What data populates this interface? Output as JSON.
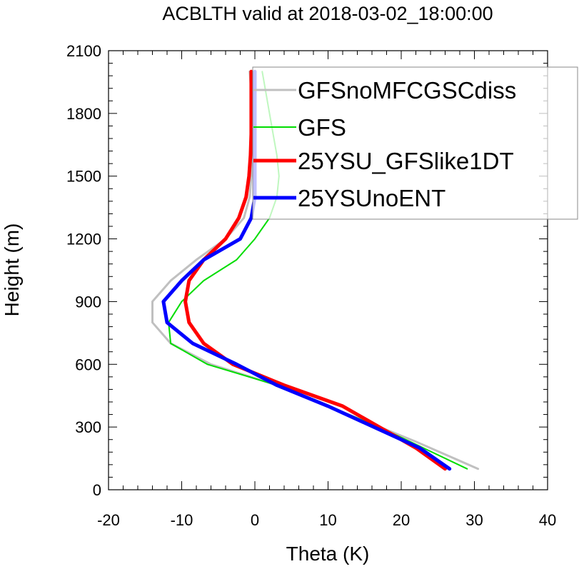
{
  "chart_data": {
    "type": "line",
    "title": "ACBLTH valid at 2018-03-02_18:00:00",
    "xlabel": "Theta (K)",
    "ylabel": "Height (m)",
    "xlim": [
      -20,
      40
    ],
    "ylim": [
      0,
      2100
    ],
    "xticks": [
      -20,
      -10,
      0,
      10,
      20,
      30,
      40
    ],
    "yticks": [
      0,
      300,
      600,
      900,
      1200,
      1500,
      1800,
      2100
    ],
    "legend_position": "top-right",
    "grid": false,
    "series": [
      {
        "name": "GFSnoMFCGSCdiss",
        "color": "#c0c0c0",
        "width": 3,
        "points": [
          [
            30.5,
            100
          ],
          [
            22,
            230
          ],
          [
            10,
            400
          ],
          [
            3,
            500
          ],
          [
            -6,
            600
          ],
          [
            -11.5,
            700
          ],
          [
            -14,
            800
          ],
          [
            -14,
            900
          ],
          [
            -11.5,
            1000
          ],
          [
            -8,
            1100
          ],
          [
            -4,
            1200
          ],
          [
            -1.5,
            1300
          ],
          [
            -0.7,
            1400
          ],
          [
            -0.5,
            1500
          ],
          [
            -0.5,
            1600
          ],
          [
            -0.5,
            1700
          ],
          [
            -0.5,
            1800
          ],
          [
            -0.5,
            1900
          ],
          [
            -0.7,
            2000
          ]
        ]
      },
      {
        "name": "GFS",
        "color": "#00dd00",
        "width": 2,
        "points": [
          [
            29,
            100
          ],
          [
            17,
            300
          ],
          [
            10,
            400
          ],
          [
            3,
            500
          ],
          [
            -6.5,
            600
          ],
          [
            -11.5,
            700
          ],
          [
            -11.8,
            800
          ],
          [
            -10,
            900
          ],
          [
            -7,
            1000
          ],
          [
            -2.5,
            1100
          ],
          [
            0,
            1200
          ],
          [
            2,
            1300
          ],
          [
            3,
            1400
          ],
          [
            3.3,
            1500
          ],
          [
            3,
            1600
          ],
          [
            2.5,
            1700
          ],
          [
            2,
            1800
          ],
          [
            1.5,
            1900
          ],
          [
            1,
            2000
          ]
        ]
      },
      {
        "name": "25YSU_GFSlike1DT",
        "color": "#ff0000",
        "width": 5,
        "points": [
          [
            26,
            100
          ],
          [
            22,
            200
          ],
          [
            12,
            400
          ],
          [
            4,
            500
          ],
          [
            -3,
            600
          ],
          [
            -7,
            700
          ],
          [
            -9,
            800
          ],
          [
            -9.5,
            900
          ],
          [
            -9,
            1000
          ],
          [
            -7,
            1100
          ],
          [
            -4,
            1200
          ],
          [
            -2.2,
            1300
          ],
          [
            -1.2,
            1400
          ],
          [
            -0.8,
            1500
          ],
          [
            -0.6,
            1600
          ],
          [
            -0.5,
            1700
          ],
          [
            -0.5,
            1800
          ],
          [
            -0.5,
            1900
          ],
          [
            -0.5,
            2000
          ]
        ]
      },
      {
        "name": "25YSUnoENT",
        "color": "#0000ff",
        "width": 5,
        "points": [
          [
            26.6,
            100
          ],
          [
            22.5,
            200
          ],
          [
            10,
            400
          ],
          [
            3,
            500
          ],
          [
            -2.5,
            600
          ],
          [
            -8.5,
            700
          ],
          [
            -12,
            800
          ],
          [
            -12.5,
            900
          ],
          [
            -10,
            1000
          ],
          [
            -7,
            1100
          ],
          [
            -2,
            1200
          ],
          [
            -0.5,
            1300
          ],
          [
            0,
            1400
          ],
          [
            0,
            1500
          ],
          [
            0,
            1600
          ],
          [
            0,
            1700
          ],
          [
            0,
            1800
          ],
          [
            0,
            1900
          ],
          [
            0,
            2000
          ]
        ]
      }
    ]
  }
}
